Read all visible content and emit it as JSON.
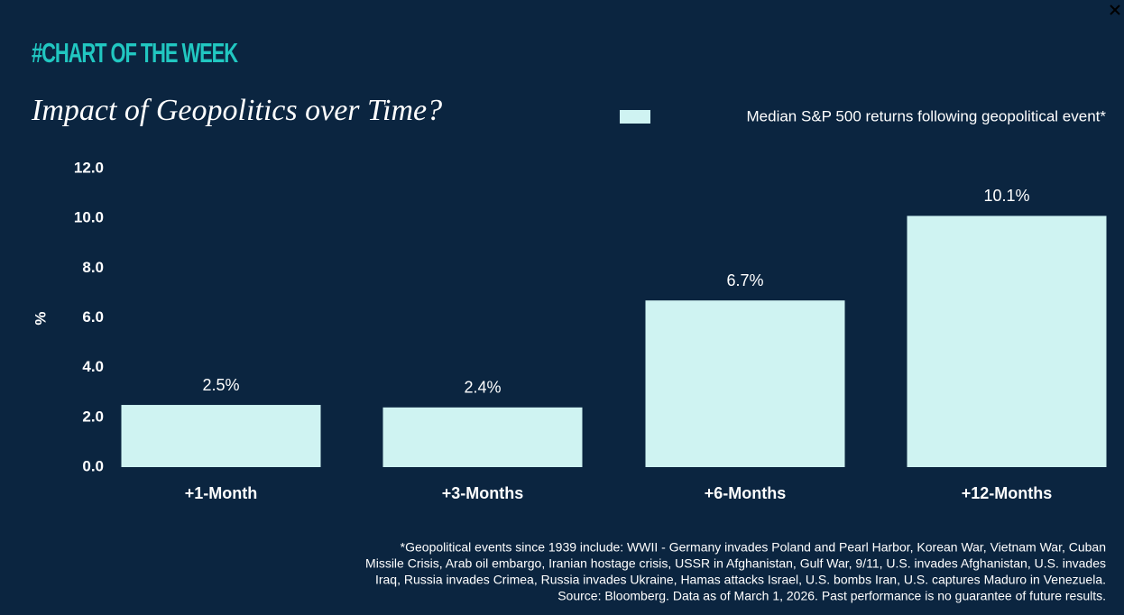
{
  "chart_data": {
    "type": "bar",
    "header": "#CHART OF THE WEEK",
    "title": "Impact of Geopolitics over Time?",
    "y_label": "%",
    "categories": [
      "+1-Month",
      "+3-Months",
      "+6-Months",
      "+12-Months"
    ],
    "series": [
      {
        "name": "Median S&P 500 returns following geopolitical event*",
        "color": "#cff3f2",
        "values": [
          2.5,
          2.4,
          6.7,
          10.1
        ],
        "value_labels": [
          "2.5%",
          "2.4%",
          "6.7%",
          "10.1%"
        ]
      }
    ],
    "ylim": [
      0,
      12
    ],
    "yticks": [
      {
        "value": 0,
        "label": "0.0"
      },
      {
        "value": 2,
        "label": "2.0"
      },
      {
        "value": 4,
        "label": "4.0"
      },
      {
        "value": 6,
        "label": "6.0"
      },
      {
        "value": 8,
        "label": "8.0"
      },
      {
        "value": 10,
        "label": "10.0"
      },
      {
        "value": 12,
        "label": "12.0"
      }
    ],
    "grid": false,
    "legend": "top-right",
    "footnote": [
      "*Geopolitical events since 1939 include: WWII - Germany invades Poland and Pearl Harbor, Korean War, Vietnam War, Cuban",
      "Missile Crisis, Arab oil embargo, Iranian hostage crisis, USSR in Afghanistan, Gulf War, 9/11, U.S. invades Afghanistan, U.S. invades",
      "Iraq, Russia invades Crimea, Russia invades Ukraine, Hamas attacks Israel, U.S. bombs Iran, U.S. captures Maduro in Venezuela.",
      "Source: Bloomberg. Data as of March 1, 2026. Past performance is no guarantee of future results."
    ]
  }
}
